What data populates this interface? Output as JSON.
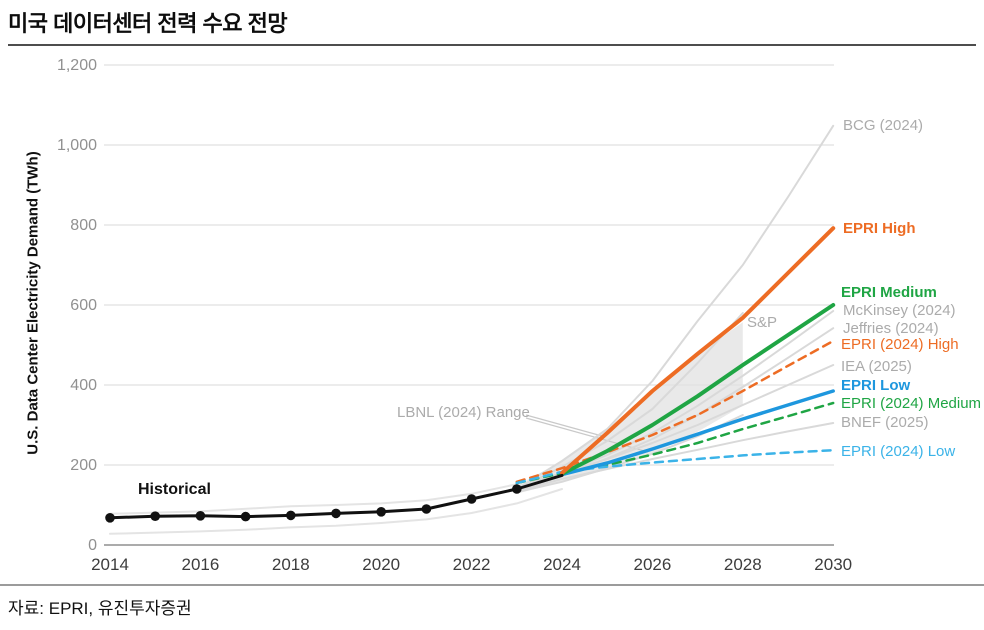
{
  "header": {
    "title": "미국 데이터센터 전력 수요 전망"
  },
  "footer": {
    "source": "자료: EPRI, 유진투자증권"
  },
  "chart_data": {
    "type": "line",
    "title": "미국 데이터센터 전력 수요 전망",
    "xlabel": "",
    "ylabel": "U.S. Data Center Electricity Demand (TWh)",
    "unit": "TWh",
    "xlim": [
      2014,
      2030
    ],
    "ylim": [
      0,
      1200
    ],
    "xticks": [
      2014,
      2016,
      2018,
      2020,
      2022,
      2024,
      2026,
      2028,
      2030
    ],
    "yticks": [
      0,
      200,
      400,
      600,
      800,
      1000,
      1200
    ],
    "grid": true,
    "legend_position": "right-inline-labels",
    "band": {
      "name": "S&P range",
      "color": "#e1e1e1",
      "opacity": 0.75,
      "upper": [
        [
          2023,
          148
        ],
        [
          2024,
          210
        ],
        [
          2025,
          290
        ],
        [
          2026,
          385
        ],
        [
          2027,
          478
        ],
        [
          2028,
          557
        ]
      ],
      "lower": [
        [
          2023,
          128
        ],
        [
          2024,
          158
        ],
        [
          2025,
          188
        ],
        [
          2026,
          228
        ],
        [
          2027,
          283
        ],
        [
          2028,
          348
        ]
      ]
    },
    "series": [
      {
        "name": "Historical range high",
        "color": "#e4e4e4",
        "style": "solid",
        "width": 2,
        "points": [
          [
            2014,
            78
          ],
          [
            2016,
            84
          ],
          [
            2018,
            97
          ],
          [
            2019,
            100
          ],
          [
            2020,
            104
          ],
          [
            2021,
            112
          ],
          [
            2022,
            128
          ],
          [
            2023,
            152
          ]
        ]
      },
      {
        "name": "Historical range low",
        "color": "#e4e4e4",
        "style": "solid",
        "width": 2,
        "points": [
          [
            2014,
            28
          ],
          [
            2015,
            31
          ],
          [
            2016,
            34
          ],
          [
            2017,
            38
          ],
          [
            2018,
            44
          ],
          [
            2019,
            48
          ],
          [
            2020,
            55
          ],
          [
            2021,
            64
          ],
          [
            2022,
            80
          ],
          [
            2023,
            104
          ],
          [
            2024,
            140
          ]
        ]
      },
      {
        "name": "BCG (2024)",
        "color": "#d9d9d9",
        "style": "solid",
        "width": 2,
        "points": [
          [
            2023,
            140
          ],
          [
            2024,
            210
          ],
          [
            2025,
            290
          ],
          [
            2026,
            410
          ],
          [
            2027,
            560
          ],
          [
            2028,
            700
          ],
          [
            2029,
            870
          ],
          [
            2030,
            1048
          ]
        ]
      },
      {
        "name": "McKinsey (2024)",
        "color": "#d9d9d9",
        "style": "solid",
        "width": 2,
        "points": [
          [
            2023,
            140
          ],
          [
            2024,
            180
          ],
          [
            2025,
            225
          ],
          [
            2026,
            280
          ],
          [
            2027,
            348
          ],
          [
            2028,
            423
          ],
          [
            2029,
            503
          ],
          [
            2030,
            585
          ]
        ]
      },
      {
        "name": "Jeffries (2024)",
        "color": "#d9d9d9",
        "style": "solid",
        "width": 2,
        "points": [
          [
            2023,
            138
          ],
          [
            2024,
            174
          ],
          [
            2025,
            216
          ],
          [
            2026,
            265
          ],
          [
            2027,
            325
          ],
          [
            2028,
            395
          ],
          [
            2029,
            468
          ],
          [
            2030,
            542
          ]
        ]
      },
      {
        "name": "IEA (2025)",
        "color": "#d9d9d9",
        "style": "solid",
        "width": 2,
        "points": [
          [
            2023,
            145
          ],
          [
            2024,
            180
          ],
          [
            2025,
            215
          ],
          [
            2026,
            255
          ],
          [
            2027,
            300
          ],
          [
            2028,
            350
          ],
          [
            2029,
            400
          ],
          [
            2030,
            450
          ]
        ]
      },
      {
        "name": "BNEF (2025)",
        "color": "#d9d9d9",
        "style": "solid",
        "width": 2,
        "points": [
          [
            2023,
            135
          ],
          [
            2024,
            165
          ],
          [
            2025,
            190
          ],
          [
            2026,
            215
          ],
          [
            2027,
            238
          ],
          [
            2028,
            262
          ],
          [
            2029,
            284
          ],
          [
            2030,
            305
          ]
        ]
      },
      {
        "name": "LBNL (2024) Range high",
        "color": "#d9d9d9",
        "style": "solid",
        "width": 2,
        "points": [
          [
            2023,
            140
          ],
          [
            2024,
            195
          ],
          [
            2025,
            260
          ],
          [
            2026,
            340
          ],
          [
            2027,
            455
          ],
          [
            2028,
            580
          ]
        ]
      },
      {
        "name": "LBNL (2024) Range low",
        "color": "#d9d9d9",
        "style": "solid",
        "width": 2,
        "points": [
          [
            2023,
            132
          ],
          [
            2024,
            158
          ],
          [
            2025,
            192
          ],
          [
            2026,
            228
          ],
          [
            2027,
            272
          ],
          [
            2028,
            325
          ]
        ]
      },
      {
        "name": "EPRI (2024) High",
        "color": "#ed6c24",
        "style": "dashed",
        "width": 2.5,
        "points": [
          [
            2023,
            158
          ],
          [
            2024,
            192
          ],
          [
            2025,
            232
          ],
          [
            2026,
            275
          ],
          [
            2027,
            325
          ],
          [
            2028,
            385
          ],
          [
            2029,
            448
          ],
          [
            2030,
            510
          ]
        ]
      },
      {
        "name": "EPRI (2024) Medium",
        "color": "#1fa544",
        "style": "dashed",
        "width": 2.5,
        "points": [
          [
            2023,
            155
          ],
          [
            2024,
            180
          ],
          [
            2025,
            200
          ],
          [
            2026,
            226
          ],
          [
            2027,
            255
          ],
          [
            2028,
            290
          ],
          [
            2029,
            322
          ],
          [
            2030,
            355
          ]
        ]
      },
      {
        "name": "EPRI (2024) Low",
        "color": "#3bb3e8",
        "style": "dashed",
        "width": 2.5,
        "points": [
          [
            2023,
            155
          ],
          [
            2024,
            183
          ],
          [
            2025,
            196
          ],
          [
            2026,
            206
          ],
          [
            2027,
            215
          ],
          [
            2028,
            224
          ],
          [
            2029,
            231
          ],
          [
            2030,
            237
          ]
        ]
      },
      {
        "name": "EPRI Low",
        "color": "#1e97de",
        "style": "solid",
        "width": 3.5,
        "points": [
          [
            2024,
            176
          ],
          [
            2025,
            205
          ],
          [
            2026,
            240
          ],
          [
            2027,
            277
          ],
          [
            2028,
            315
          ],
          [
            2029,
            350
          ],
          [
            2030,
            385
          ]
        ]
      },
      {
        "name": "EPRI Medium",
        "color": "#1fa544",
        "style": "solid",
        "width": 4,
        "points": [
          [
            2024,
            178
          ],
          [
            2025,
            235
          ],
          [
            2026,
            300
          ],
          [
            2027,
            372
          ],
          [
            2028,
            450
          ],
          [
            2029,
            525
          ],
          [
            2030,
            600
          ]
        ]
      },
      {
        "name": "EPRI High",
        "color": "#ed6c24",
        "style": "solid",
        "width": 4,
        "points": [
          [
            2024,
            180
          ],
          [
            2025,
            280
          ],
          [
            2026,
            385
          ],
          [
            2027,
            478
          ],
          [
            2028,
            568
          ],
          [
            2029,
            680
          ],
          [
            2030,
            792
          ]
        ]
      },
      {
        "name": "Historical",
        "color": "#111111",
        "style": "solid",
        "width": 3,
        "markers": true,
        "marker_last_year": 2023,
        "marker_radius": 4.8,
        "points": [
          [
            2014,
            68
          ],
          [
            2015,
            72
          ],
          [
            2016,
            73
          ],
          [
            2017,
            71
          ],
          [
            2018,
            74
          ],
          [
            2019,
            79
          ],
          [
            2020,
            83
          ],
          [
            2021,
            90
          ],
          [
            2022,
            115
          ],
          [
            2023,
            140
          ],
          [
            2024,
            174
          ]
        ]
      }
    ],
    "annotations": {
      "bcg": {
        "text": "BCG (2024)"
      },
      "epri_high": {
        "text": "EPRI High"
      },
      "epri_medium": {
        "text": "EPRI Medium"
      },
      "mckinsey": {
        "text": "McKinsey (2024)"
      },
      "jeffries": {
        "text": "Jeffries (2024)"
      },
      "epri2024_high": {
        "text": "EPRI (2024) High"
      },
      "iea": {
        "text": "IEA (2025)"
      },
      "epri_low": {
        "text": "EPRI Low"
      },
      "epri2024_medium": {
        "text": "EPRI (2024) Medium"
      },
      "bnef": {
        "text": "BNEF (2025)"
      },
      "epri2024_low": {
        "text": "EPRI (2024) Low"
      },
      "sp": {
        "text": "S&P"
      },
      "lbnl": {
        "text": "LBNL (2024) Range"
      },
      "historical": {
        "text": "Historical"
      }
    }
  }
}
